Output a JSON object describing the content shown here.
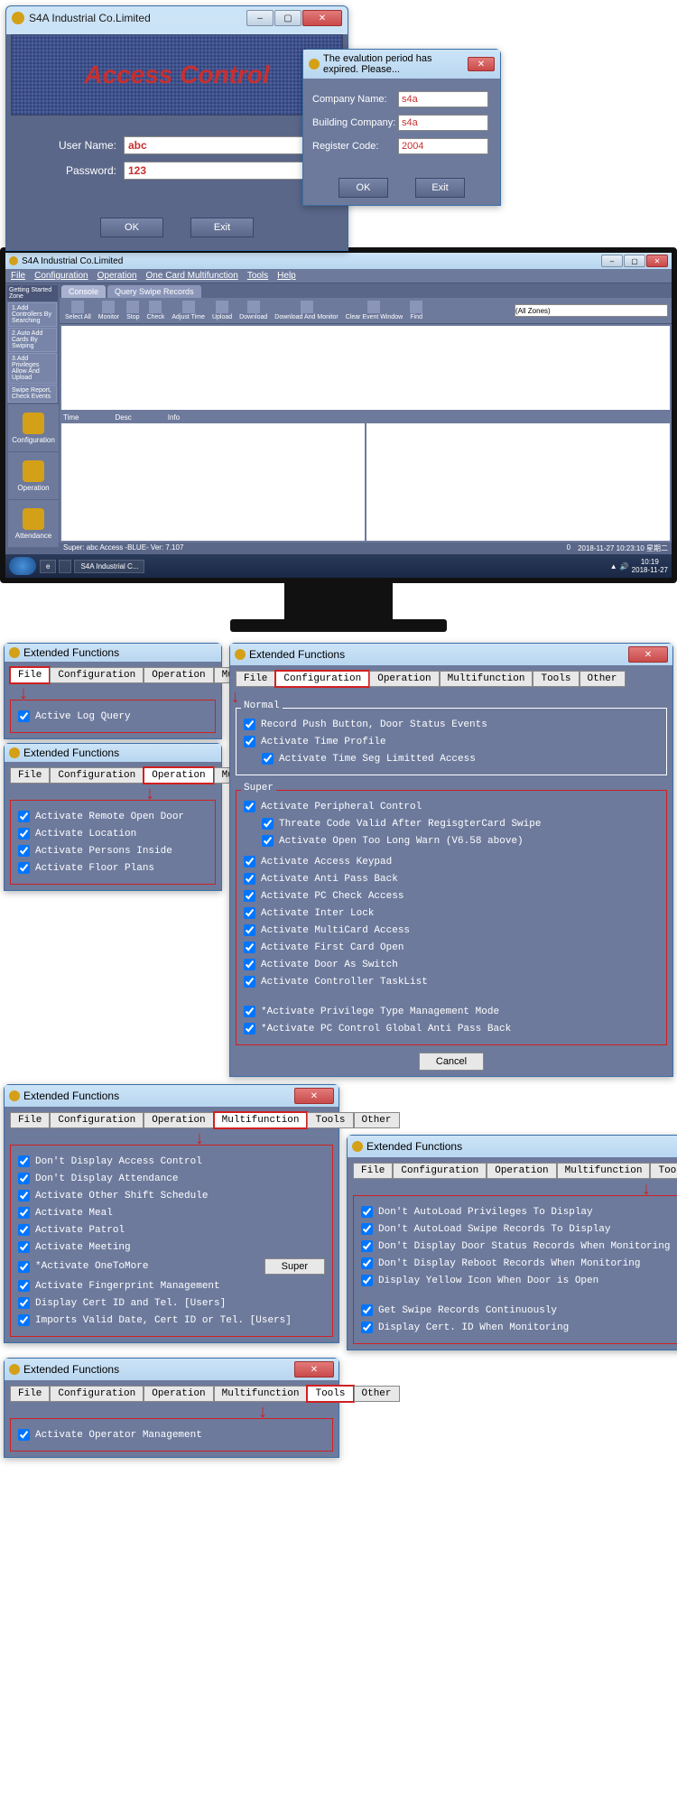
{
  "login": {
    "window_title": "S4A Industrial Co.Limited",
    "banner": "Access Control",
    "username_label": "User Name:",
    "username_value": "abc",
    "password_label": "Password:",
    "password_value": "123",
    "ok": "OK",
    "exit": "Exit"
  },
  "register": {
    "title": "The evalution period has expired.  Please...",
    "company_label": "Company Name:",
    "company_value": "s4a",
    "building_label": "Building Company:",
    "building_value": "s4a",
    "code_label": "Register Code:",
    "code_value": "2004",
    "ok": "OK",
    "exit": "Exit"
  },
  "app": {
    "title": "S4A Industrial Co.Limited",
    "menu": [
      "File",
      "Configuration",
      "Operation",
      "One Card Multifunction",
      "Tools",
      "Help"
    ],
    "sidebar_head": "Getting Started Zone",
    "sidebar_items": [
      "1.Add Controllers By Searching",
      "2.Auto Add Cards By Swiping",
      "3.Add Privileges Allow And Upload",
      "Swipe Report, Check Events"
    ],
    "side_icons": [
      {
        "label": "Configuration"
      },
      {
        "label": "Operation"
      },
      {
        "label": "Attendance"
      }
    ],
    "tabs": [
      "Console",
      "Query Swipe Records"
    ],
    "toolbar": [
      "Select All",
      "Monitor",
      "Stop",
      "Check",
      "Adjust Time",
      "Upload",
      "Download",
      "Download And Monitor",
      "Clear Event Window",
      "Find"
    ],
    "find_placeholder": "(All Zones)",
    "grid_cols": [
      "Time",
      "Desc",
      "Info"
    ],
    "status_left": "Super: abc   Access -BLUE-  Ver: 7.107",
    "status_right": "0",
    "tray_time": "2018-11-27 10:23:10 星期二",
    "taskbar_items": [
      "e",
      "",
      "S4A Industrial C..."
    ],
    "tray_clock": "10:19\n2018-11-27"
  },
  "ef_title": "Extended Functions",
  "ef_tabs_all": [
    "File",
    "Configuration",
    "Operation",
    "Multifunction",
    "Tools",
    "Other"
  ],
  "ef_tabs_short": [
    "File",
    "Configuration",
    "Operation",
    "Multifuncti"
  ],
  "ef_cancel": "Cancel",
  "ef_super": "Super",
  "ef1": {
    "items": [
      "Active Log Query"
    ]
  },
  "ef_config": {
    "normal_label": "Normal",
    "normal": [
      "Record Push Button, Door Status Events",
      "Activate Time Profile",
      "Activate Time Seg Limitted Access"
    ],
    "super_label": "Super",
    "super_a": [
      "Activate Peripheral Control",
      "Threate Code Valid After RegisgterCard Swipe",
      "Activate Open Too Long Warn (V6.58 above)"
    ],
    "super_b": [
      "Activate Access Keypad",
      "Activate Anti Pass Back",
      "Activate PC Check Access",
      "Activate Inter Lock",
      "Activate MultiCard Access",
      "Activate First Card Open",
      "Activate Door As Switch",
      "Activate Controller TaskList"
    ],
    "super_c": [
      "*Activate Privilege Type Management Mode",
      "*Activate PC Control Global Anti Pass Back"
    ]
  },
  "ef_op": {
    "items": [
      "Activate Remote Open Door",
      "Activate Location",
      "Activate Persons Inside",
      "Activate Floor Plans"
    ]
  },
  "ef_multi": {
    "items": [
      "Don't Display Access Control",
      "Don't Display Attendance",
      "Activate Other Shift Schedule",
      "Activate Meal",
      "Activate Patrol",
      "Activate Meeting",
      "*Activate OneToMore",
      "Activate Fingerprint Management",
      "Display Cert ID and Tel. [Users]",
      "Imports Valid Date,  Cert ID or Tel. [Users]"
    ]
  },
  "ef_other": {
    "items_a": [
      "Don't AutoLoad Privileges To Display",
      "Don't AutoLoad Swipe Records To Display",
      "Don't Display Door Status Records When Monitoring",
      "Don't Display Reboot Records When Monitoring",
      "Display Yellow Icon When Door is Open"
    ],
    "items_b": [
      "Get Swipe Records Continuously",
      "Display Cert. ID When Monitoring"
    ]
  },
  "ef_tools": {
    "items": [
      "Activate Operator Management"
    ]
  }
}
